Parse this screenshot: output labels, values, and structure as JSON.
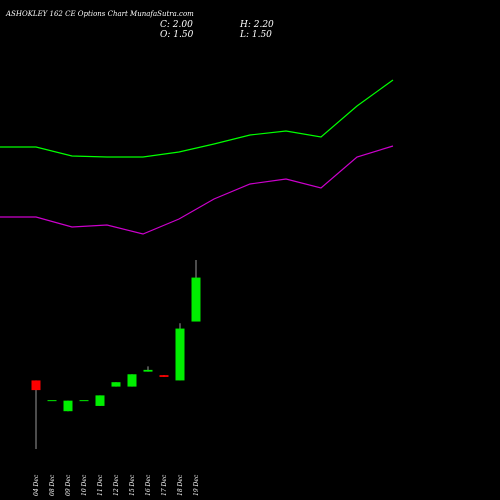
{
  "header": {
    "title": "ASHOKLEY 162 CE Options Chart MunafaSutra.com",
    "close_label": "C: 2.00",
    "high_label": "H: 2.20",
    "open_label": "O: 1.50",
    "low_label": "L: 1.50"
  },
  "colors": {
    "up": "#00ee00",
    "down": "#ff0000",
    "upper_band": "#00ff00",
    "lower_band": "#cc00cc",
    "background": "#000000"
  },
  "chart_data": {
    "type": "candlestick",
    "x": [
      "04 Dec",
      "08 Dec",
      "09 Dec",
      "10 Dec",
      "11 Dec",
      "12 Dec",
      "15 Dec",
      "16 Dec",
      "17 Dec",
      "18 Dec",
      "19 Dec"
    ],
    "ylim": [
      -0.15,
      2.25
    ],
    "candles": [
      {
        "date": "04 Dec",
        "open": 0.83,
        "high": 0.83,
        "low": 0.05,
        "close": 0.72
      },
      {
        "date": "08 Dec",
        "open": 0.6,
        "high": 0.6,
        "low": 0.6,
        "close": 0.6
      },
      {
        "date": "09 Dec",
        "open": 0.48,
        "high": 0.6,
        "low": 0.48,
        "close": 0.6
      },
      {
        "date": "10 Dec",
        "open": 0.6,
        "high": 0.6,
        "low": 0.6,
        "close": 0.6
      },
      {
        "date": "11 Dec",
        "open": 0.54,
        "high": 0.66,
        "low": 0.54,
        "close": 0.66
      },
      {
        "date": "12 Dec",
        "open": 0.76,
        "high": 0.81,
        "low": 0.76,
        "close": 0.81
      },
      {
        "date": "15 Dec",
        "open": 0.76,
        "high": 0.9,
        "low": 0.76,
        "close": 0.9
      },
      {
        "date": "16 Dec",
        "open": 0.93,
        "high": 0.99,
        "low": 0.93,
        "close": 0.95
      },
      {
        "date": "17 Dec",
        "open": 0.89,
        "high": 0.89,
        "low": 0.87,
        "close": 0.87
      },
      {
        "date": "18 Dec",
        "open": 0.83,
        "high": 1.48,
        "low": 0.83,
        "close": 1.42
      },
      {
        "date": "19 Dec",
        "open": 1.5,
        "high": 2.2,
        "low": 1.5,
        "close": 2.0
      }
    ],
    "upper_band_pixels_note": "",
    "upper_band": [
      {
        "date": "04 Dec",
        "value": 0.0
      },
      {
        "date": "08 Dec",
        "value": 0.0
      },
      {
        "date": "09 Dec",
        "value": 0.0
      },
      {
        "date": "10 Dec",
        "value": 0.0
      },
      {
        "date": "11 Dec",
        "value": 0.0
      },
      {
        "date": "12 Dec",
        "value": 0.0
      },
      {
        "date": "15 Dec",
        "value": 0.0
      },
      {
        "date": "16 Dec",
        "value": 0.0
      },
      {
        "date": "17 Dec",
        "value": 0.0
      },
      {
        "date": "18 Dec",
        "value": 0.0
      },
      {
        "date": "19 Dec",
        "value": 0.0
      }
    ],
    "bands_scale": "separate",
    "upper_band_series": [
      147,
      147,
      156,
      157,
      157,
      152,
      144,
      135,
      131,
      137,
      106,
      80
    ],
    "lower_band_series": [
      217,
      217,
      227,
      225,
      234,
      219,
      199,
      184,
      179,
      188,
      157,
      146
    ],
    "bands_x": [
      "-",
      "04 Dec",
      "08 Dec",
      "09 Dec",
      "10 Dec",
      "11 Dec",
      "12 Dec",
      "15 Dec",
      "16 Dec",
      "17 Dec",
      "18 Dec",
      "19 Dec"
    ]
  }
}
